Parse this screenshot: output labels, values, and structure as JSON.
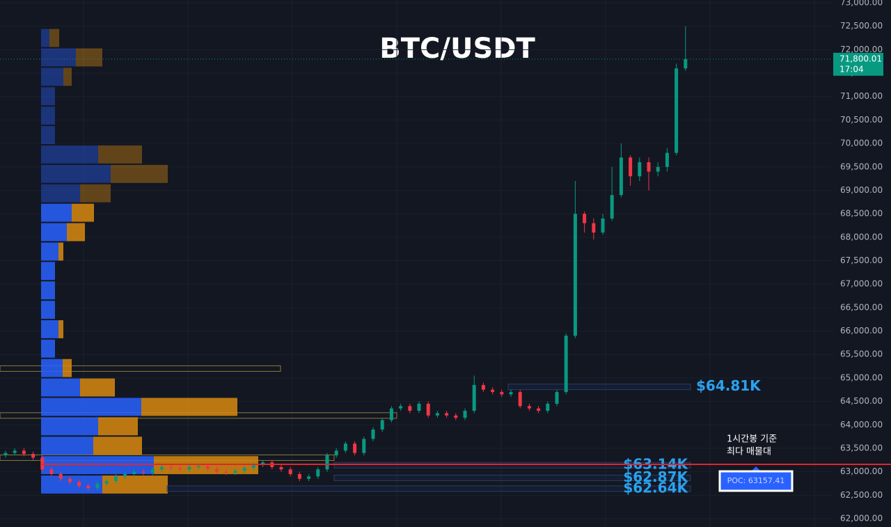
{
  "chart_data": {
    "type": "candlestick",
    "title": "BTC/USDT",
    "ylim": [
      61822,
      73059
    ],
    "yticks": [
      {
        "value": 62000,
        "label": "62,000.00"
      },
      {
        "value": 62500,
        "label": "62,500.00"
      },
      {
        "value": 63000,
        "label": "63,000.00"
      },
      {
        "value": 63500,
        "label": "63,500.00"
      },
      {
        "value": 64000,
        "label": "64,000.00"
      },
      {
        "value": 64500,
        "label": "64,500.00"
      },
      {
        "value": 65000,
        "label": "65,000.00"
      },
      {
        "value": 65500,
        "label": "65,500.00"
      },
      {
        "value": 66000,
        "label": "66,000.00"
      },
      {
        "value": 66500,
        "label": "66,500.00"
      },
      {
        "value": 67000,
        "label": "67,000.00"
      },
      {
        "value": 67500,
        "label": "67,500.00"
      },
      {
        "value": 68000,
        "label": "68,000.00"
      },
      {
        "value": 68500,
        "label": "68,500.00"
      },
      {
        "value": 69000,
        "label": "69,000.00"
      },
      {
        "value": 69500,
        "label": "69,500.00"
      },
      {
        "value": 70000,
        "label": "70,000.00"
      },
      {
        "value": 70500,
        "label": "70,500.00"
      },
      {
        "value": 71000,
        "label": "71,000.00"
      },
      {
        "value": 71500,
        "label": "71,500.00"
      },
      {
        "value": 72000,
        "label": "72,000.00"
      },
      {
        "value": 72500,
        "label": "72,500.00"
      },
      {
        "value": 73000,
        "label": "73,000.00"
      }
    ],
    "grid": true,
    "up_color": "#089981",
    "down_color": "#f23645",
    "open": [
      63350,
      63400,
      63450,
      63380,
      63300,
      63050,
      62950,
      62850,
      62780,
      62700,
      62650,
      62750,
      62800,
      62900,
      62950,
      63000,
      62980,
      63050,
      63100,
      63080,
      63050,
      63100,
      63120,
      63060,
      63000,
      62980,
      63020,
      63080,
      63150,
      63200,
      63100,
      63050,
      62950,
      62850,
      62900,
      63050,
      63350,
      63450,
      63600,
      63400,
      63700,
      63900,
      64100,
      64350,
      64400,
      64300,
      64450,
      64200,
      64250,
      64200,
      64150,
      64300,
      64850,
      64750,
      64700,
      64650,
      64700,
      64400,
      64350,
      64300,
      64450,
      64700,
      65900,
      68500,
      68300,
      68100,
      68400,
      68900,
      69700,
      69300,
      69600,
      69400,
      69500,
      69800,
      71600
    ],
    "high": [
      63450,
      63500,
      63500,
      63430,
      63350,
      63100,
      63000,
      62900,
      62830,
      62750,
      62800,
      62850,
      62950,
      63000,
      63050,
      63050,
      63100,
      63150,
      63150,
      63130,
      63150,
      63170,
      63170,
      63110,
      63050,
      63070,
      63130,
      63200,
      63250,
      63250,
      63150,
      63100,
      63000,
      62950,
      63100,
      63400,
      63500,
      63650,
      63650,
      63750,
      63950,
      64150,
      64400,
      64450,
      64450,
      64500,
      64500,
      64300,
      64300,
      64250,
      64350,
      65050,
      64900,
      64800,
      64750,
      64750,
      64750,
      64450,
      64400,
      64500,
      64750,
      65950,
      69200,
      68550,
      68400,
      68500,
      69500,
      70000,
      69750,
      69700,
      69700,
      69600,
      69900,
      71700,
      72500
    ],
    "low": [
      63300,
      63350,
      63330,
      63250,
      63000,
      62900,
      62800,
      62730,
      62650,
      62600,
      62600,
      62700,
      62750,
      62850,
      62900,
      62930,
      62930,
      63000,
      63030,
      63000,
      63000,
      63050,
      63010,
      62950,
      62930,
      62930,
      62970,
      63030,
      63100,
      63050,
      63000,
      62900,
      62800,
      62800,
      62850,
      63000,
      63300,
      63400,
      63350,
      63350,
      63650,
      63850,
      64050,
      64300,
      64250,
      64250,
      64150,
      64150,
      64150,
      64100,
      64100,
      64250,
      64700,
      64650,
      64600,
      64600,
      64350,
      64300,
      64250,
      64250,
      64400,
      64650,
      65850,
      68100,
      67950,
      68050,
      68350,
      68850,
      69100,
      69200,
      69000,
      69300,
      69400,
      69750,
      71550
    ],
    "close": [
      63400,
      63450,
      63380,
      63300,
      63050,
      62950,
      62850,
      62780,
      62700,
      62650,
      62750,
      62800,
      62900,
      62950,
      63000,
      62980,
      63050,
      63100,
      63080,
      63050,
      63100,
      63120,
      63060,
      63000,
      62980,
      63020,
      63080,
      63150,
      63200,
      63100,
      63050,
      62950,
      62850,
      62900,
      63050,
      63350,
      63450,
      63600,
      63400,
      63700,
      63900,
      64100,
      64350,
      64400,
      64300,
      64450,
      64200,
      64250,
      64200,
      64150,
      64300,
      64850,
      64750,
      64700,
      64650,
      64700,
      64400,
      64350,
      64300,
      64450,
      64700,
      65900,
      68500,
      68300,
      68100,
      68400,
      68900,
      69700,
      69300,
      69600,
      69400,
      69500,
      69800,
      71600,
      71800
    ],
    "profile": {
      "row_low": [
        62520,
        62934,
        63348,
        63762,
        64176,
        64590,
        65004,
        65418,
        65832,
        66246,
        66660,
        67074,
        67488,
        67902,
        68316,
        68730,
        69144,
        69558,
        69972,
        70386,
        70800,
        71214,
        71628,
        72042
      ],
      "buy": [
        88,
        162,
        75,
        82,
        144,
        56,
        31,
        20,
        25,
        20,
        20,
        20,
        25,
        37,
        44,
        56,
        100,
        82,
        20,
        20,
        20,
        32,
        50,
        12
      ],
      "sell": [
        94,
        150,
        70,
        57,
        138,
        50,
        13,
        0,
        7,
        0,
        0,
        0,
        7,
        26,
        32,
        44,
        82,
        63,
        0,
        0,
        0,
        12,
        38,
        14
      ],
      "value_area": [
        62520,
        68730
      ],
      "buy_color": "#2962ff",
      "sell_color": "#d98a0f"
    },
    "zones": [
      65200,
      64200,
      63300
    ],
    "levels": [
      {
        "value": 64810,
        "label": "$64.81K"
      },
      {
        "value": 63140,
        "label": "$63.14K"
      },
      {
        "value": 62870,
        "label": "$62.87K"
      },
      {
        "value": 62640,
        "label": "$62.64K"
      }
    ],
    "poc": {
      "value": 63157.41,
      "label": "POC: 63157.41"
    },
    "notes": [
      "1시간봉 기준",
      "최다 매물대"
    ],
    "last_price": {
      "value": 71800.01,
      "label": "71,800.01",
      "countdown": "17:04"
    }
  }
}
